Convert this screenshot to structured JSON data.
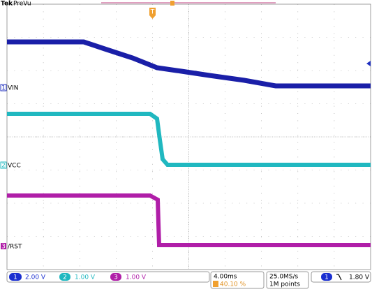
{
  "header": {
    "brand": "Tek",
    "mode": "PreVu",
    "trigger_marker": "T"
  },
  "channels": [
    {
      "number": "1",
      "label": "VIN",
      "scale": "2.00 V"
    },
    {
      "number": "2",
      "label": "VCC",
      "scale": "1.00 V"
    },
    {
      "number": "3",
      "label": "/RST",
      "scale": "1.00 V"
    }
  ],
  "timebase": {
    "scale": "4.00ms",
    "position": "40.10 %"
  },
  "acquisition": {
    "rate": "25.0MS/s",
    "length": "1M points"
  },
  "trigger": {
    "source": "1",
    "level": "1.80 V"
  }
}
